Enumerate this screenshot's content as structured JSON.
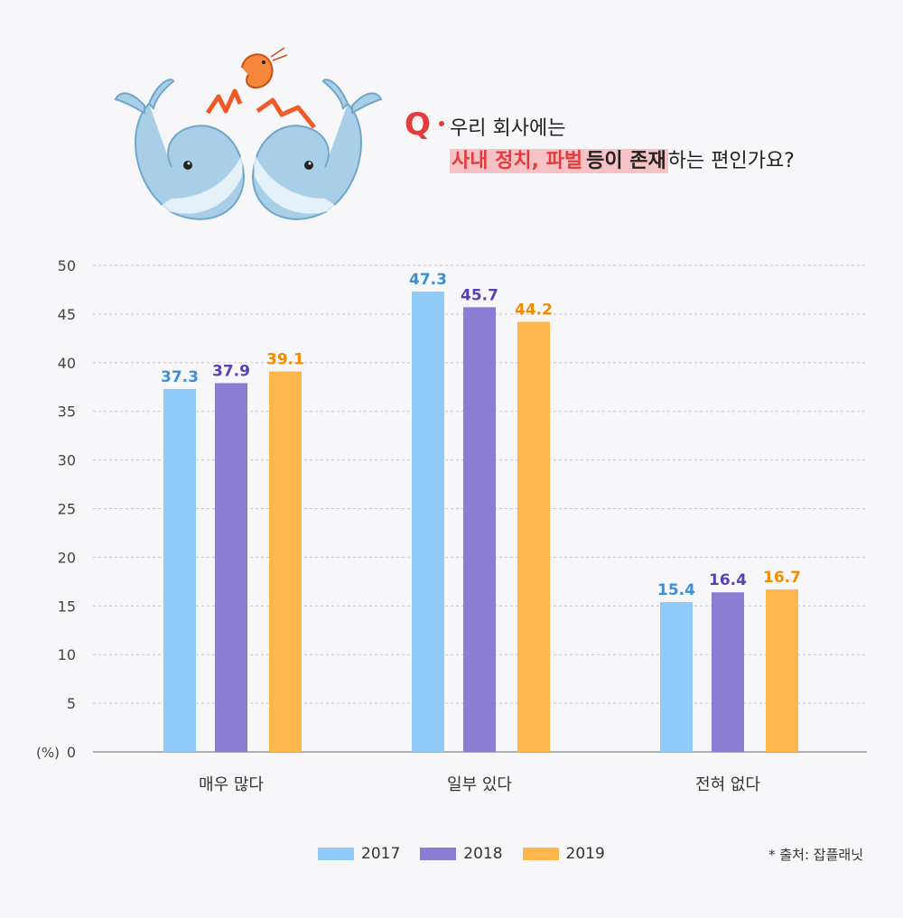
{
  "question": {
    "q": "Q",
    "line1": "우리 회사에는",
    "hl_part1": "사내 정치, 파벌",
    "hl_part2": "등이 존재",
    "line2_rest": "하는 편인가요?"
  },
  "chart_data": {
    "type": "bar",
    "categories": [
      "매우 많다",
      "일부 있다",
      "전혀 없다"
    ],
    "series": [
      {
        "name": "2017",
        "values": [
          37.3,
          47.3,
          15.4
        ],
        "color": "#90caf9",
        "label_color": "#3b8fd6"
      },
      {
        "name": "2018",
        "values": [
          37.9,
          45.7,
          16.4
        ],
        "color": "#8a7dd3",
        "label_color": "#5b3fb3"
      },
      {
        "name": "2019",
        "values": [
          39.1,
          44.2,
          16.7
        ],
        "color": "#ffb74d",
        "label_color": "#f08c00"
      }
    ],
    "ylim": [
      0,
      50
    ],
    "yticks": [
      0,
      5,
      10,
      15,
      20,
      25,
      30,
      35,
      40,
      45,
      50
    ],
    "y_unit": "(%)",
    "grid": true,
    "legend_position": "bottom-center"
  },
  "source": "* 출처: 잡플래닛"
}
